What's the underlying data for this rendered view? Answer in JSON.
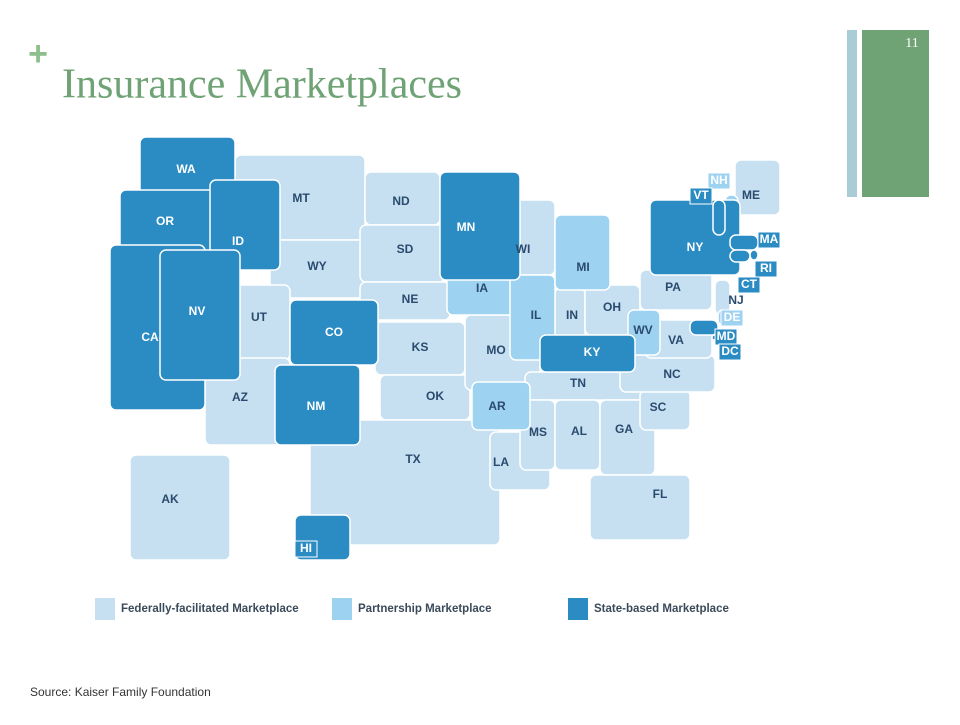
{
  "header": {
    "mark": "+",
    "title": "Insurance Marketplaces",
    "page_number": "11"
  },
  "legend": [
    {
      "label": "Federally-facilitated Marketplace",
      "color": "#c6e0f1",
      "states": [
        "AK",
        "MT",
        "WY",
        "UT",
        "AZ",
        "ND",
        "SD",
        "NE",
        "KS",
        "OK",
        "TX",
        "MO",
        "LA",
        "WI",
        "IN",
        "OH",
        "TN",
        "MS",
        "AL",
        "GA",
        "FL",
        "SC",
        "NC",
        "VA",
        "PA",
        "ME",
        "NJ"
      ]
    },
    {
      "label": "Partnership Marketplace",
      "color": "#9dd2f1",
      "states": [
        "IA",
        "IL",
        "AR",
        "MI",
        "WV",
        "NH",
        "DE"
      ]
    },
    {
      "label": "State-based Marketplace",
      "color": "#2b8bc3",
      "states": [
        "WA",
        "OR",
        "ID",
        "CA",
        "NV",
        "CO",
        "NM",
        "MN",
        "KY",
        "NY",
        "VT",
        "MA",
        "RI",
        "CT",
        "MD",
        "DC",
        "HI"
      ]
    }
  ],
  "source": "Source: Kaiser Family Foundation"
}
